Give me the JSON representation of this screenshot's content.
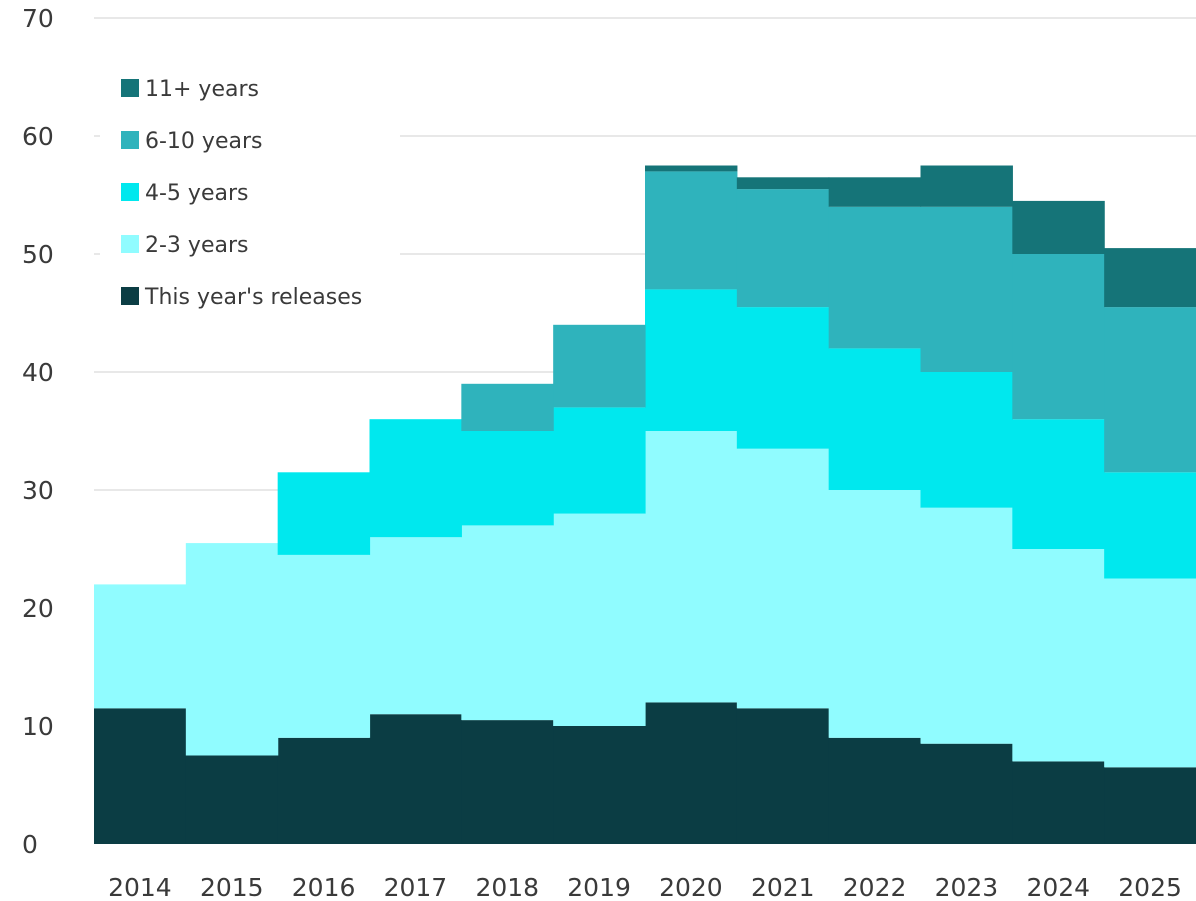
{
  "chart_data": {
    "type": "area",
    "step": true,
    "stacked": true,
    "title": "",
    "xlabel": "",
    "ylabel": "",
    "categories": [
      "2014",
      "2015",
      "2016",
      "2017",
      "2018",
      "2019",
      "2020",
      "2021",
      "2022",
      "2023",
      "2024",
      "2025"
    ],
    "ylim": [
      0,
      70
    ],
    "yticks": [
      0,
      10,
      20,
      30,
      40,
      50,
      60,
      70
    ],
    "grid": true,
    "legend_position": "top-left",
    "series": [
      {
        "name": "This year's releases",
        "color": "#0b3d44",
        "values": [
          11.5,
          7.5,
          9,
          11,
          10.5,
          10,
          12,
          11.5,
          9,
          8.5,
          7,
          6.5
        ]
      },
      {
        "name": "2-3 years",
        "color": "#90fcff",
        "values": [
          10.5,
          18,
          15.5,
          15,
          16.5,
          18,
          23,
          22,
          21,
          20,
          18,
          16
        ]
      },
      {
        "name": "4-5 years",
        "color": "#00e8ee",
        "values": [
          0,
          0,
          7,
          10,
          8,
          9,
          12,
          12,
          12,
          11.5,
          11,
          9
        ]
      },
      {
        "name": "6-10 years",
        "color": "#2fb3bc",
        "values": [
          0,
          0,
          0,
          0,
          4,
          7,
          10,
          10,
          12,
          14,
          14,
          14
        ]
      },
      {
        "name": "11+ years",
        "color": "#157478",
        "values": [
          0,
          0,
          0,
          0,
          0,
          0,
          0.5,
          1,
          2.5,
          3.5,
          4.5,
          5
        ]
      }
    ]
  }
}
